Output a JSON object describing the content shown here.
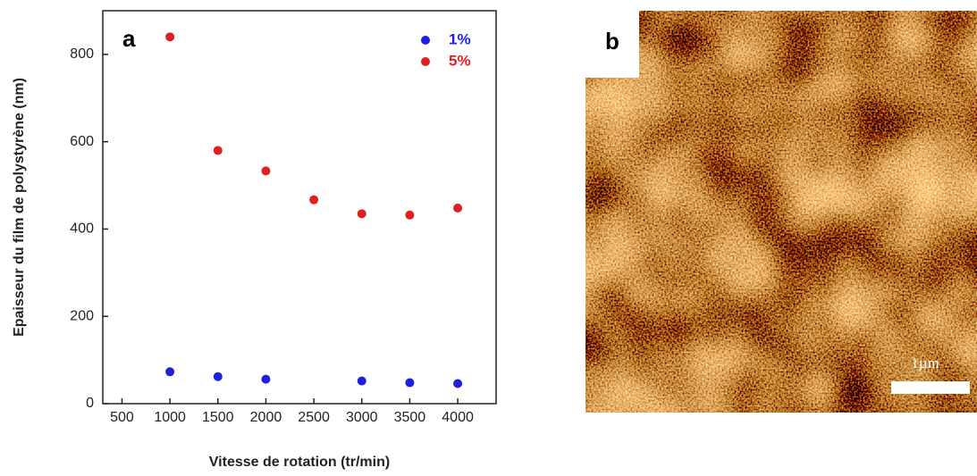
{
  "chart_data": {
    "type": "scatter",
    "panel_label": "a",
    "x_label": "Vitesse de rotation (tr/min)",
    "y_label": "Epaisseur du film de polystyrène (nm)",
    "xlim": [
      300,
      4400
    ],
    "xticks": [
      500,
      1000,
      1500,
      2000,
      2500,
      3000,
      3500,
      4000
    ],
    "ylim": [
      0,
      900
    ],
    "yticks": [
      0,
      200,
      400,
      600,
      800
    ],
    "legend": "upper right",
    "series": [
      {
        "name": "1%",
        "color": "#1f1fe0",
        "x": [
          1000,
          1500,
          2000,
          3000,
          3500,
          4000
        ],
        "values": [
          73,
          62,
          56,
          52,
          48,
          46
        ]
      },
      {
        "name": "5%",
        "color": "#e02020",
        "x": [
          1000,
          1500,
          2000,
          2500,
          3000,
          3500,
          4000
        ],
        "values": [
          840,
          580,
          533,
          467,
          435,
          432,
          448
        ]
      }
    ]
  },
  "image": {
    "panel_label": "b",
    "scale_bar": "1µm"
  }
}
